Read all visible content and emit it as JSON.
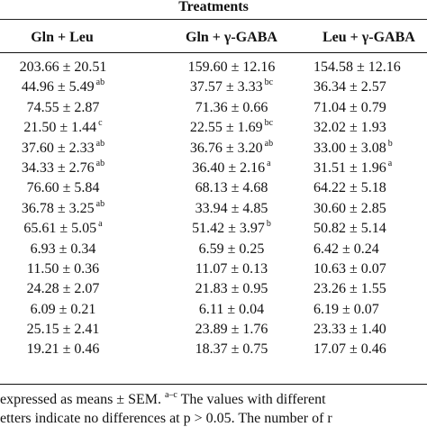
{
  "table": {
    "group_header": "Treatments",
    "columns": [
      "Gln + Leu",
      "Gln + γ-GABA",
      "Leu + γ-GABA"
    ],
    "rows": [
      [
        {
          "v": "203.66 ± 20.51",
          "s": ""
        },
        {
          "v": "159.60 ± 12.16",
          "s": ""
        },
        {
          "v": "154.58 ± 12.16",
          "s": ""
        }
      ],
      [
        {
          "v": "44.96 ± 5.49",
          "s": "ab"
        },
        {
          "v": "37.57 ± 3.33",
          "s": "bc"
        },
        {
          "v": "36.34 ± 2.57",
          "s": ""
        }
      ],
      [
        {
          "v": "74.55 ± 2.87",
          "s": ""
        },
        {
          "v": "71.36 ± 0.66",
          "s": ""
        },
        {
          "v": "71.04 ± 0.79",
          "s": ""
        }
      ],
      [
        {
          "v": "21.50 ± 1.44",
          "s": "c"
        },
        {
          "v": "22.55 ± 1.69",
          "s": "bc"
        },
        {
          "v": "32.02 ± 1.93",
          "s": ""
        }
      ],
      [
        {
          "v": "37.60 ± 2.33",
          "s": "ab"
        },
        {
          "v": "36.76 ± 3.20",
          "s": "ab"
        },
        {
          "v": "33.00 ± 3.08",
          "s": "b"
        }
      ],
      [
        {
          "v": "34.33 ± 2.76",
          "s": "ab"
        },
        {
          "v": "36.40 ± 2.16",
          "s": "a"
        },
        {
          "v": "31.51 ± 1.96",
          "s": "a"
        }
      ],
      [
        {
          "v": "76.60 ± 5.84",
          "s": ""
        },
        {
          "v": "68.13 ± 4.68",
          "s": ""
        },
        {
          "v": "64.22 ± 5.18",
          "s": ""
        }
      ],
      [
        {
          "v": "36.78 ± 3.25",
          "s": "ab"
        },
        {
          "v": "33.94 ± 4.85",
          "s": ""
        },
        {
          "v": "30.60 ± 2.85",
          "s": ""
        }
      ],
      [
        {
          "v": "65.61 ± 5.05",
          "s": "a"
        },
        {
          "v": "51.42 ± 3.97",
          "s": "b"
        },
        {
          "v": "50.82 ± 5.14",
          "s": ""
        }
      ],
      [
        {
          "v": "6.93 ± 0.34",
          "s": ""
        },
        {
          "v": "6.59 ± 0.25",
          "s": ""
        },
        {
          "v": "6.42 ± 0.24",
          "s": ""
        }
      ],
      [
        {
          "v": "11.50 ± 0.36",
          "s": ""
        },
        {
          "v": "11.07 ± 0.13",
          "s": ""
        },
        {
          "v": "10.63 ± 0.07",
          "s": ""
        }
      ],
      [
        {
          "v": "24.28 ± 2.07",
          "s": ""
        },
        {
          "v": "21.83 ± 0.95",
          "s": ""
        },
        {
          "v": "23.26 ± 1.55",
          "s": ""
        }
      ],
      [
        {
          "v": "6.09 ± 0.21",
          "s": ""
        },
        {
          "v": "6.11 ± 0.04",
          "s": ""
        },
        {
          "v": "6.19 ± 0.07",
          "s": ""
        }
      ],
      [
        {
          "v": "25.15 ± 2.41",
          "s": ""
        },
        {
          "v": "23.89 ± 1.76",
          "s": ""
        },
        {
          "v": "23.33 ± 1.40",
          "s": ""
        }
      ],
      [
        {
          "v": "19.21 ± 0.46",
          "s": ""
        },
        {
          "v": "18.37 ± 0.75",
          "s": ""
        },
        {
          "v": "17.07 ± 0.46",
          "s": ""
        }
      ]
    ]
  },
  "footnote": {
    "line1_pre": "expressed as means ± SEM. ",
    "line1_sup": "a–c",
    "line1_post": " The values with different",
    "line2": "etters indicate no differences at p > 0.05. The number of r"
  }
}
